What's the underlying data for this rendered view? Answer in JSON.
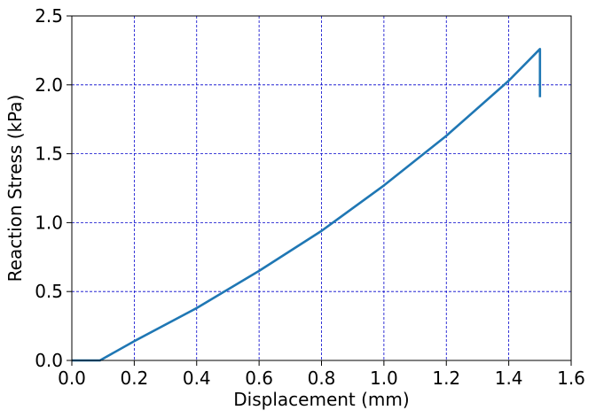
{
  "chart_data": {
    "type": "line",
    "title": "",
    "xlabel": "Displacement (mm)",
    "ylabel": "Reaction Stress (kPa)",
    "xlim": [
      0.0,
      1.6
    ],
    "ylim": [
      0.0,
      2.5
    ],
    "grid": true,
    "x_ticks": [
      {
        "value": 0.0,
        "label": "0.0"
      },
      {
        "value": 0.2,
        "label": "0.2"
      },
      {
        "value": 0.4,
        "label": "0.4"
      },
      {
        "value": 0.6,
        "label": "0.6"
      },
      {
        "value": 0.8,
        "label": "0.8"
      },
      {
        "value": 1.0,
        "label": "1.0"
      },
      {
        "value": 1.2,
        "label": "1.2"
      },
      {
        "value": 1.4,
        "label": "1.4"
      },
      {
        "value": 1.6,
        "label": "1.6"
      }
    ],
    "y_ticks": [
      {
        "value": 0.0,
        "label": "0.0"
      },
      {
        "value": 0.5,
        "label": "0.5"
      },
      {
        "value": 1.0,
        "label": "1.0"
      },
      {
        "value": 1.5,
        "label": "1.5"
      },
      {
        "value": 2.0,
        "label": "2.0"
      },
      {
        "value": 2.5,
        "label": "2.5"
      }
    ],
    "series": [
      {
        "color": "#1f77b4",
        "x": [
          0.0,
          0.09,
          0.2,
          0.4,
          0.6,
          0.8,
          1.0,
          1.2,
          1.4,
          1.5,
          1.5
        ],
        "y": [
          0.0,
          0.0,
          0.14,
          0.38,
          0.65,
          0.94,
          1.27,
          1.63,
          2.03,
          2.26,
          1.91
        ]
      }
    ],
    "grid_color": "#0000cc",
    "axis_color": "#000000"
  }
}
